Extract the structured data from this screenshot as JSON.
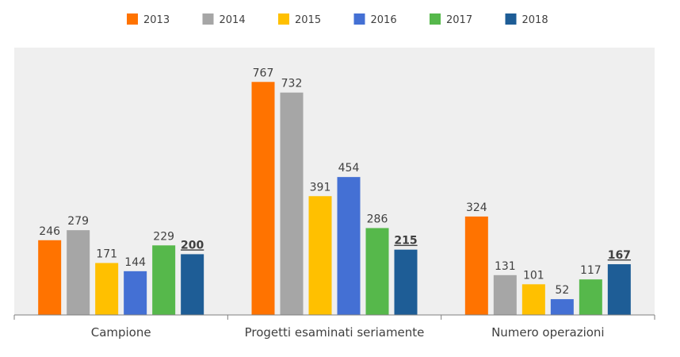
{
  "chart_data": {
    "type": "bar",
    "title": "",
    "xlabel": "",
    "ylabel": "",
    "ylim": [
      0,
      880
    ],
    "grid": false,
    "legend_position": "top",
    "categories": [
      "Campione",
      "Progetti esaminati seriamente",
      "Numero operazioni"
    ],
    "series": [
      {
        "name": "2013",
        "color": "#FF7300",
        "values": [
          246,
          767,
          324
        ]
      },
      {
        "name": "2014",
        "color": "#A6A6A6",
        "values": [
          279,
          732,
          131
        ]
      },
      {
        "name": "2015",
        "color": "#FFC000",
        "values": [
          171,
          391,
          101
        ]
      },
      {
        "name": "2016",
        "color": "#4470D4",
        "values": [
          144,
          454,
          52
        ]
      },
      {
        "name": "2017",
        "color": "#56B84B",
        "values": [
          229,
          286,
          117
        ]
      },
      {
        "name": "2018",
        "color": "#1E5D96",
        "values": [
          200,
          215,
          167
        ],
        "label_style": "bold-underline"
      }
    ],
    "colors": {
      "plot_background": "#EFEFEF",
      "axis": "#7F7F7F",
      "label_text": "#404040"
    }
  }
}
